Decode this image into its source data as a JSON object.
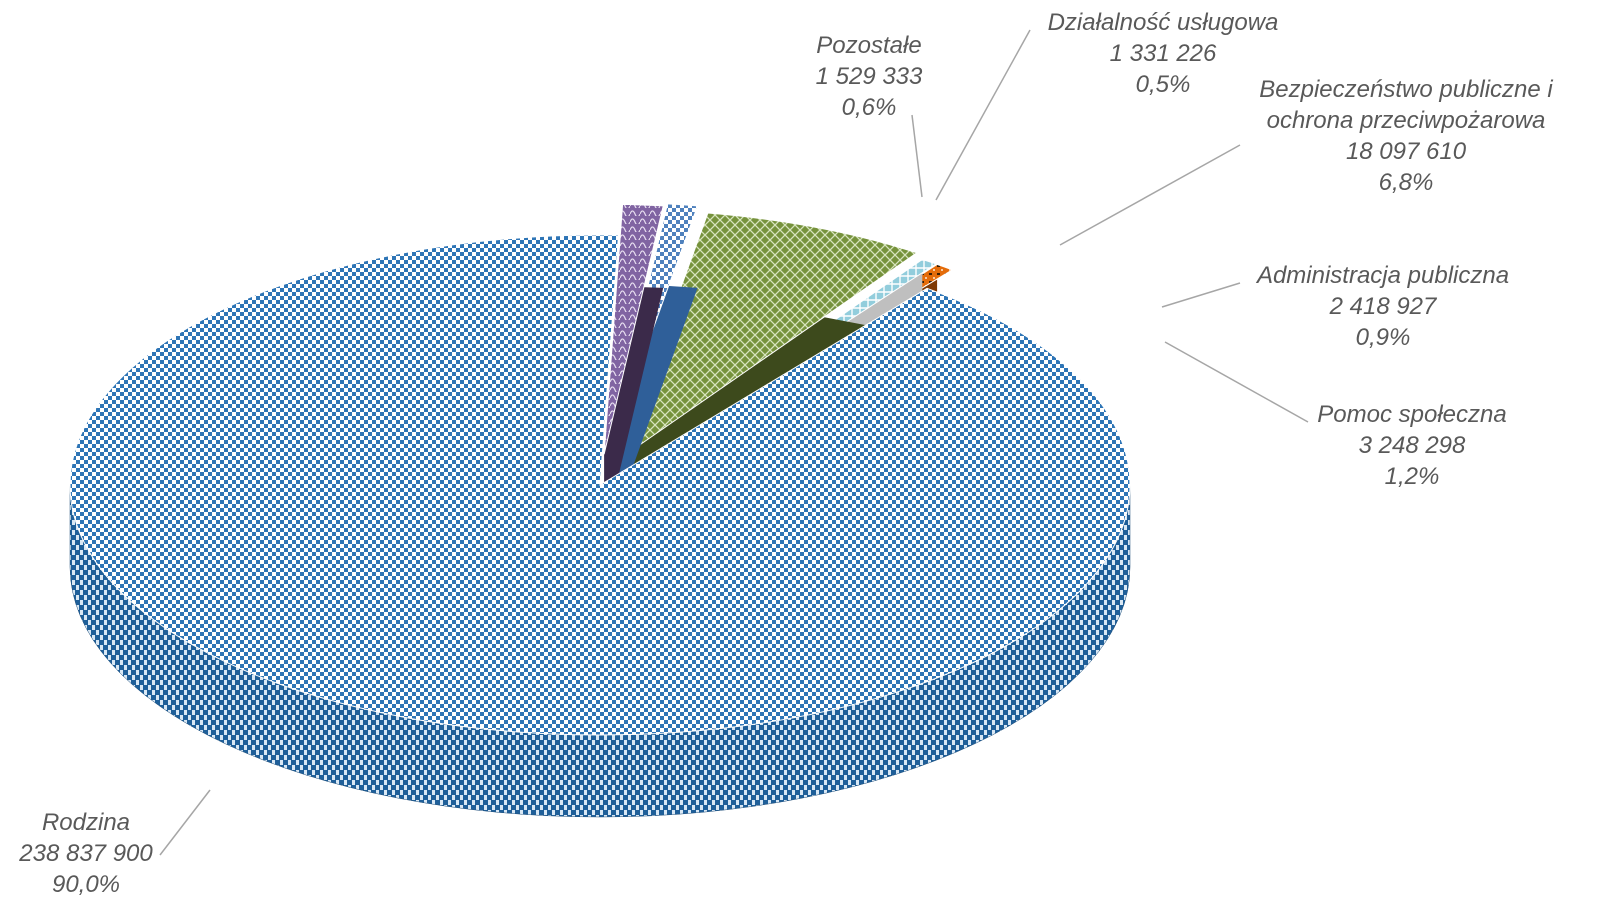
{
  "chart_data": {
    "type": "pie",
    "title": "",
    "slices": [
      {
        "label": "Rodzina",
        "value_text": "238 837 900",
        "percent_text": "90,0%",
        "value": 238837900,
        "color": "#2e75b6",
        "exploded": false
      },
      {
        "label": "Pomoc społeczna",
        "value_text": "3 248 298",
        "percent_text": "1,2%",
        "value": 3248298,
        "color": "#8064a2",
        "exploded": true
      },
      {
        "label": "Administracja publiczna",
        "value_text": "2 418 927",
        "percent_text": "0,9%",
        "value": 2418927,
        "color": "#4f81bd",
        "exploded": true
      },
      {
        "label": "Bezpieczeństwo publiczne i ochrona przeciwpożarowa",
        "label_lines": [
          "Bezpieczeństwo publiczne i",
          "ochrona przeciwpożarowa"
        ],
        "value_text": "18 097 610",
        "percent_text": "6,8%",
        "value": 18097610,
        "color": "#76923c",
        "exploded": true
      },
      {
        "label": "Działalność usługowa",
        "value_text": "1 331 226",
        "percent_text": "0,5%",
        "value": 1331226,
        "color": "#92cddc",
        "exploded": true
      },
      {
        "label": "Pozostałe",
        "value_text": "1 529 333",
        "percent_text": "0,6%",
        "value": 1529333,
        "color": "#e46c0a",
        "exploded": true
      }
    ],
    "legend": "none",
    "style": "3d-exploded"
  }
}
